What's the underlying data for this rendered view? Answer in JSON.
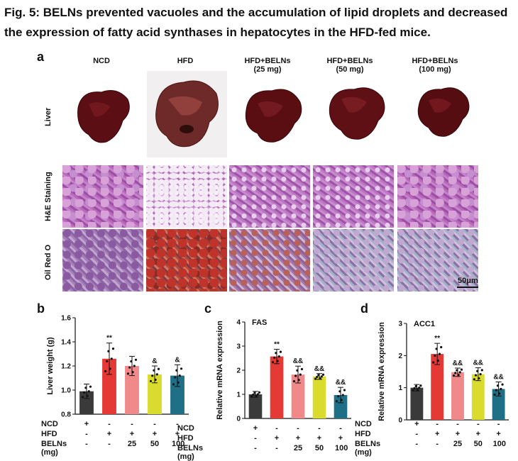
{
  "figure": {
    "title": "Fig. 5: BELNs prevented vacuoles and the accumulation of lipid droplets and decreased the expression of fatty acid synthases in hepatocytes in the HFD-fed mice.",
    "panel_a": {
      "letter": "a",
      "columns": [
        "NCD",
        "HFD",
        "HFD+BELNs\n(25 mg)",
        "HFD+BELNs\n(50 mg)",
        "HFD+BELNs\n(100 mg)"
      ],
      "rows": [
        "Liver",
        "H&E Staining",
        "Oil Red O"
      ],
      "scale_bar": "50μm"
    },
    "panel_b": {
      "letter": "b"
    },
    "panel_c": {
      "letter": "c"
    },
    "panel_d": {
      "letter": "d"
    },
    "treatment_table": {
      "row_labels": [
        "NCD",
        "HFD",
        "BELNs (mg)"
      ],
      "ncd": [
        "+",
        "-",
        "-",
        "-",
        "-"
      ],
      "hfd": [
        "-",
        "+",
        "+",
        "+",
        "+"
      ],
      "belns": [
        "-",
        "-",
        "25",
        "50",
        "100"
      ]
    },
    "colors": {
      "ncd": "#3a3a3a",
      "hfd": "#e53935",
      "belns25": "#f08a8a",
      "belns50": "#d9dc2e",
      "belns100": "#1f6f87"
    }
  },
  "chart_data": [
    {
      "type": "bar",
      "panel": "b",
      "title": "",
      "xlabel": "",
      "ylabel": "Liver weight (g)",
      "ylim": [
        0.8,
        1.6
      ],
      "yticks": [
        "0.8",
        "1.0",
        "1.2",
        "1.4",
        "1.6"
      ],
      "categories": [
        "NCD",
        "HFD",
        "HFD+BELNs (25 mg)",
        "HFD+BELNs (50 mg)",
        "HFD+BELNs (100 mg)"
      ],
      "values": [
        0.99,
        1.26,
        1.2,
        1.13,
        1.12
      ],
      "errors": [
        0.06,
        0.13,
        0.08,
        0.07,
        0.09
      ],
      "annotations": [
        "",
        "**",
        "",
        "&",
        "&"
      ]
    },
    {
      "type": "bar",
      "panel": "c",
      "title": "FAS",
      "xlabel": "",
      "ylabel": "Relative mRNA expression",
      "ylim": [
        0,
        4
      ],
      "yticks": [
        "0",
        "1",
        "2",
        "3",
        "4"
      ],
      "categories": [
        "NCD",
        "HFD",
        "HFD+BELNs (25 mg)",
        "HFD+BELNs (50 mg)",
        "HFD+BELNs (100 mg)"
      ],
      "values": [
        1.0,
        2.57,
        1.82,
        1.74,
        0.97
      ],
      "errors": [
        0.12,
        0.3,
        0.35,
        0.12,
        0.32
      ],
      "annotations": [
        "",
        "**",
        "&&",
        "&&",
        "&&"
      ]
    },
    {
      "type": "bar",
      "panel": "d",
      "title": "ACC1",
      "xlabel": "",
      "ylabel": "Relative mRNA expression",
      "ylim": [
        0,
        3
      ],
      "yticks": [
        "0",
        "1",
        "2",
        "3"
      ],
      "categories": [
        "NCD",
        "HFD",
        "HFD+BELNs (25 mg)",
        "HFD+BELNs (50 mg)",
        "HFD+BELNs (100 mg)"
      ],
      "values": [
        1.0,
        2.05,
        1.48,
        1.42,
        0.96
      ],
      "errors": [
        0.1,
        0.33,
        0.13,
        0.2,
        0.22
      ],
      "annotations": [
        "",
        "**",
        "&&",
        "&&",
        "&&"
      ]
    }
  ]
}
